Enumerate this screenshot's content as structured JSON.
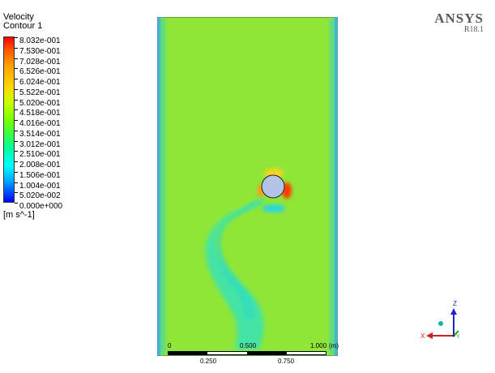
{
  "legend": {
    "variable": "Velocity",
    "contour": "Contour 1",
    "labels": [
      "8.032e-001",
      "7.530e-001",
      "7.028e-001",
      "6.526e-001",
      "6.024e-001",
      "5.522e-001",
      "5.020e-001",
      "4.518e-001",
      "4.016e-001",
      "3.514e-001",
      "3.012e-001",
      "2.510e-001",
      "2.008e-001",
      "1.506e-001",
      "1.004e-001",
      "5.020e-002",
      "0.000e+000"
    ],
    "units": "[m s^-1]"
  },
  "brand": {
    "name": "ANSYS",
    "release": "R18.1"
  },
  "scale": {
    "top": [
      "0",
      "0.500",
      "1.000"
    ],
    "unit": "(m)",
    "bottom": [
      "0.250",
      "0.750"
    ]
  },
  "axes": {
    "z": "Z",
    "x": "X",
    "y": "Y"
  },
  "colors": {
    "field_bg": "#8fe637",
    "wake": "#45e3a6",
    "cylinder": "#b2c4e6",
    "high": "#ff3a00",
    "wall": "#3399ff"
  }
}
